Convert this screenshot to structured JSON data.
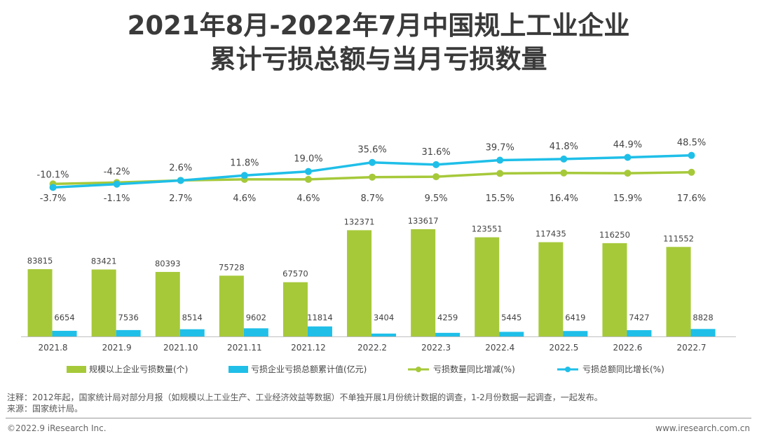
{
  "title_line1": "2021年8月-2022年7月中国规上工业企业",
  "title_line2": "累计亏损总额与当月亏损数量",
  "chart_data": {
    "type": "bar+line",
    "categories": [
      "2021.8",
      "2021.9",
      "2021.10",
      "2021.11",
      "2021.12",
      "2022.2",
      "2022.3",
      "2022.4",
      "2022.5",
      "2022.6",
      "2022.7"
    ],
    "series": [
      {
        "name": "规模以上企业亏损数量(个)",
        "type": "bar",
        "color": "#a6c93a",
        "values": [
          83815,
          83421,
          80393,
          75728,
          67570,
          132371,
          133617,
          123551,
          117435,
          116250,
          111552
        ]
      },
      {
        "name": "亏损企业亏损总额累计值(亿元)",
        "type": "bar",
        "color": "#1fbfe8",
        "values": [
          6654,
          7536,
          8514,
          9602,
          11814,
          3404,
          4259,
          5445,
          6419,
          7427,
          8828
        ]
      },
      {
        "name": "亏损数量同比增减(%)",
        "type": "line",
        "color": "#a6c93a",
        "values": [
          -3.7,
          -1.1,
          2.7,
          4.6,
          4.6,
          8.7,
          9.5,
          15.5,
          16.4,
          15.9,
          17.6
        ],
        "labels": [
          "-3.7%",
          "-1.1%",
          "2.7%",
          "4.6%",
          "4.6%",
          "8.7%",
          "9.5%",
          "15.5%",
          "16.4%",
          "15.9%",
          "17.6%"
        ]
      },
      {
        "name": "亏损总额同比增长(%)",
        "type": "line",
        "color": "#1fbfe8",
        "values": [
          -10.1,
          -4.2,
          2.6,
          11.8,
          19.0,
          35.6,
          31.6,
          39.7,
          41.8,
          44.9,
          48.5
        ],
        "labels": [
          "-10.1%",
          "-4.2%",
          "2.6%",
          "11.8%",
          "19.0%",
          "35.6%",
          "31.6%",
          "39.7%",
          "41.8%",
          "44.9%",
          "48.5%"
        ]
      }
    ],
    "legend_position": "bottom"
  },
  "notes": {
    "line1": "注释：2012年起，国家统计局对部分月报（如规模以上工业生产、工业经济效益等数据）不单独开展1月份统计数据的调查，1-2月份数据一起调查，一起发布。",
    "line2": "来源：国家统计局。"
  },
  "footer": {
    "left": "©2022.9 iResearch Inc.",
    "right": "www.iresearch.com.cn"
  }
}
